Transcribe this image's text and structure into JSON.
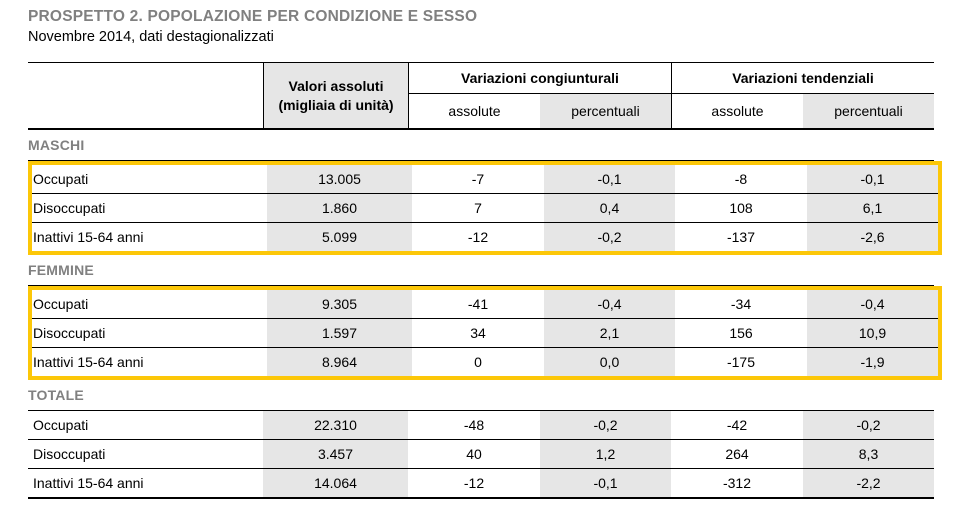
{
  "title": "PROSPETTO 2. POPOLAZIONE PER CONDIZIONE E SESSO",
  "subtitle": "Novembre 2014, dati destagionalizzati",
  "colors": {
    "highlight_yellow": "#FCC708",
    "cell_gray": "#E6E6E6",
    "heading_gray": "#808080"
  },
  "table": {
    "header": {
      "valori_line1": "Valori assoluti",
      "valori_line2": "(migliaia di unità)",
      "congiunturali": "Variazioni congiunturali",
      "tendenziali": "Variazioni tendenziali",
      "assolute": "assolute",
      "percentuali": "percentuali"
    },
    "sections": [
      {
        "name": "MASCHI",
        "highlighted": true,
        "rows": [
          {
            "label": "Occupati",
            "values": [
              "13.005",
              "-7",
              "-0,1",
              "-8",
              "-0,1"
            ]
          },
          {
            "label": "Disoccupati",
            "values": [
              "1.860",
              "7",
              "0,4",
              "108",
              "6,1"
            ]
          },
          {
            "label": "Inattivi 15-64 anni",
            "values": [
              "5.099",
              "-12",
              "-0,2",
              "-137",
              "-2,6"
            ]
          }
        ]
      },
      {
        "name": "FEMMINE",
        "highlighted": true,
        "rows": [
          {
            "label": "Occupati",
            "values": [
              "9.305",
              "-41",
              "-0,4",
              "-34",
              "-0,4"
            ]
          },
          {
            "label": "Disoccupati",
            "values": [
              "1.597",
              "34",
              "2,1",
              "156",
              "10,9"
            ]
          },
          {
            "label": "Inattivi 15-64 anni",
            "values": [
              "8.964",
              "0",
              "0,0",
              "-175",
              "-1,9"
            ]
          }
        ]
      },
      {
        "name": "TOTALE",
        "highlighted": false,
        "rows": [
          {
            "label": "Occupati",
            "values": [
              "22.310",
              "-48",
              "-0,2",
              "-42",
              "-0,2"
            ]
          },
          {
            "label": "Disoccupati",
            "values": [
              "3.457",
              "40",
              "1,2",
              "264",
              "8,3"
            ]
          },
          {
            "label": "Inattivi 15-64 anni",
            "values": [
              "14.064",
              "-12",
              "-0,1",
              "-312",
              "-2,2"
            ]
          }
        ]
      }
    ]
  }
}
